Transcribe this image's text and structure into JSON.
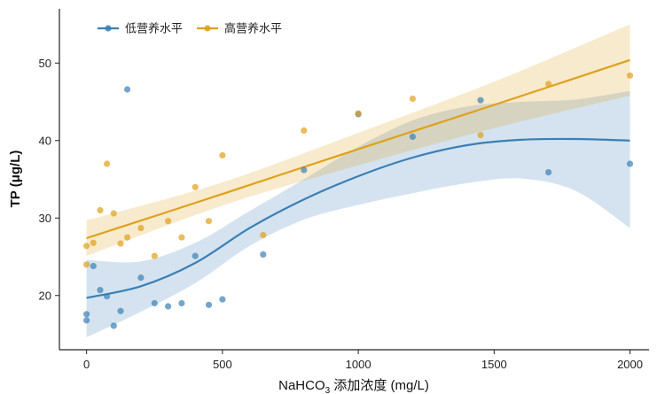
{
  "chart_data": {
    "type": "scatter",
    "xlabel_main": "NaHCO",
    "xlabel_sub": "3",
    "xlabel_rest": " 添加浓度 (mg/L)",
    "ylabel": "TP (μg/L)",
    "xlim": [
      -100,
      2070
    ],
    "ylim": [
      13,
      57
    ],
    "xticks": [
      0,
      500,
      1000,
      1500,
      2000
    ],
    "yticks": [
      20,
      30,
      40,
      50
    ],
    "legend_position": "top-left",
    "series": [
      {
        "name": "低营养水平",
        "color": "#3b7fb5",
        "points": [
          {
            "x": 0,
            "y": 17.6
          },
          {
            "x": 0,
            "y": 16.8
          },
          {
            "x": 25,
            "y": 23.8
          },
          {
            "x": 50,
            "y": 20.7
          },
          {
            "x": 75,
            "y": 19.9
          },
          {
            "x": 100,
            "y": 16.1
          },
          {
            "x": 125,
            "y": 18.0
          },
          {
            "x": 150,
            "y": 46.6
          },
          {
            "x": 200,
            "y": 22.3
          },
          {
            "x": 250,
            "y": 19.0
          },
          {
            "x": 300,
            "y": 18.6
          },
          {
            "x": 350,
            "y": 19.0
          },
          {
            "x": 400,
            "y": 25.1
          },
          {
            "x": 450,
            "y": 18.8
          },
          {
            "x": 500,
            "y": 19.5
          },
          {
            "x": 650,
            "y": 25.3
          },
          {
            "x": 800,
            "y": 36.2
          },
          {
            "x": 1000,
            "y": 43.4
          },
          {
            "x": 1200,
            "y": 40.5
          },
          {
            "x": 1450,
            "y": 45.2
          },
          {
            "x": 1700,
            "y": 35.9
          },
          {
            "x": 2000,
            "y": 37.0
          }
        ],
        "fit": [
          {
            "x": 0,
            "y": 19.7
          },
          {
            "x": 200,
            "y": 21.2
          },
          {
            "x": 400,
            "y": 24.2
          },
          {
            "x": 600,
            "y": 28.7
          },
          {
            "x": 800,
            "y": 32.4
          },
          {
            "x": 1000,
            "y": 35.4
          },
          {
            "x": 1200,
            "y": 37.8
          },
          {
            "x": 1400,
            "y": 39.4
          },
          {
            "x": 1600,
            "y": 40.1
          },
          {
            "x": 1800,
            "y": 40.2
          },
          {
            "x": 2000,
            "y": 40.0
          }
        ],
        "band_upper": [
          {
            "x": 0,
            "y": 24.6
          },
          {
            "x": 200,
            "y": 24.4
          },
          {
            "x": 400,
            "y": 26.8
          },
          {
            "x": 600,
            "y": 30.9
          },
          {
            "x": 800,
            "y": 35.0
          },
          {
            "x": 1000,
            "y": 39.2
          },
          {
            "x": 1200,
            "y": 42.6
          },
          {
            "x": 1400,
            "y": 44.4
          },
          {
            "x": 1600,
            "y": 45.0
          },
          {
            "x": 1800,
            "y": 45.3
          },
          {
            "x": 2000,
            "y": 46.4
          }
        ],
        "band_lower": [
          {
            "x": 0,
            "y": 14.6
          },
          {
            "x": 200,
            "y": 17.9
          },
          {
            "x": 400,
            "y": 21.6
          },
          {
            "x": 600,
            "y": 26.4
          },
          {
            "x": 800,
            "y": 29.8
          },
          {
            "x": 1000,
            "y": 31.7
          },
          {
            "x": 1200,
            "y": 33.2
          },
          {
            "x": 1400,
            "y": 34.5
          },
          {
            "x": 1600,
            "y": 35.1
          },
          {
            "x": 1800,
            "y": 33.5
          },
          {
            "x": 2000,
            "y": 28.7
          }
        ]
      },
      {
        "name": "高营养水平",
        "color": "#e0a01a",
        "points": [
          {
            "x": 0,
            "y": 26.4
          },
          {
            "x": 0,
            "y": 24.0
          },
          {
            "x": 25,
            "y": 26.8
          },
          {
            "x": 50,
            "y": 31.0
          },
          {
            "x": 75,
            "y": 37.0
          },
          {
            "x": 100,
            "y": 30.6
          },
          {
            "x": 125,
            "y": 26.7
          },
          {
            "x": 150,
            "y": 27.5
          },
          {
            "x": 200,
            "y": 28.7
          },
          {
            "x": 250,
            "y": 25.1
          },
          {
            "x": 300,
            "y": 29.6
          },
          {
            "x": 350,
            "y": 27.5
          },
          {
            "x": 400,
            "y": 34.0
          },
          {
            "x": 450,
            "y": 29.6
          },
          {
            "x": 500,
            "y": 38.1
          },
          {
            "x": 650,
            "y": 27.8
          },
          {
            "x": 800,
            "y": 41.3
          },
          {
            "x": 1000,
            "y": 43.5
          },
          {
            "x": 1200,
            "y": 45.4
          },
          {
            "x": 1450,
            "y": 40.7
          },
          {
            "x": 1700,
            "y": 47.3
          },
          {
            "x": 2000,
            "y": 48.4
          }
        ],
        "fit": [
          {
            "x": 0,
            "y": 27.4
          },
          {
            "x": 500,
            "y": 33.1
          },
          {
            "x": 1000,
            "y": 38.9
          },
          {
            "x": 1500,
            "y": 44.6
          },
          {
            "x": 2000,
            "y": 50.4
          }
        ],
        "band_upper": [
          {
            "x": 0,
            "y": 29.7
          },
          {
            "x": 500,
            "y": 34.6
          },
          {
            "x": 1000,
            "y": 41.0
          },
          {
            "x": 1500,
            "y": 47.6
          },
          {
            "x": 2000,
            "y": 55.0
          }
        ],
        "band_lower": [
          {
            "x": 0,
            "y": 25.1
          },
          {
            "x": 500,
            "y": 31.6
          },
          {
            "x": 1000,
            "y": 36.8
          },
          {
            "x": 1500,
            "y": 41.6
          },
          {
            "x": 2000,
            "y": 45.8
          }
        ]
      }
    ]
  }
}
